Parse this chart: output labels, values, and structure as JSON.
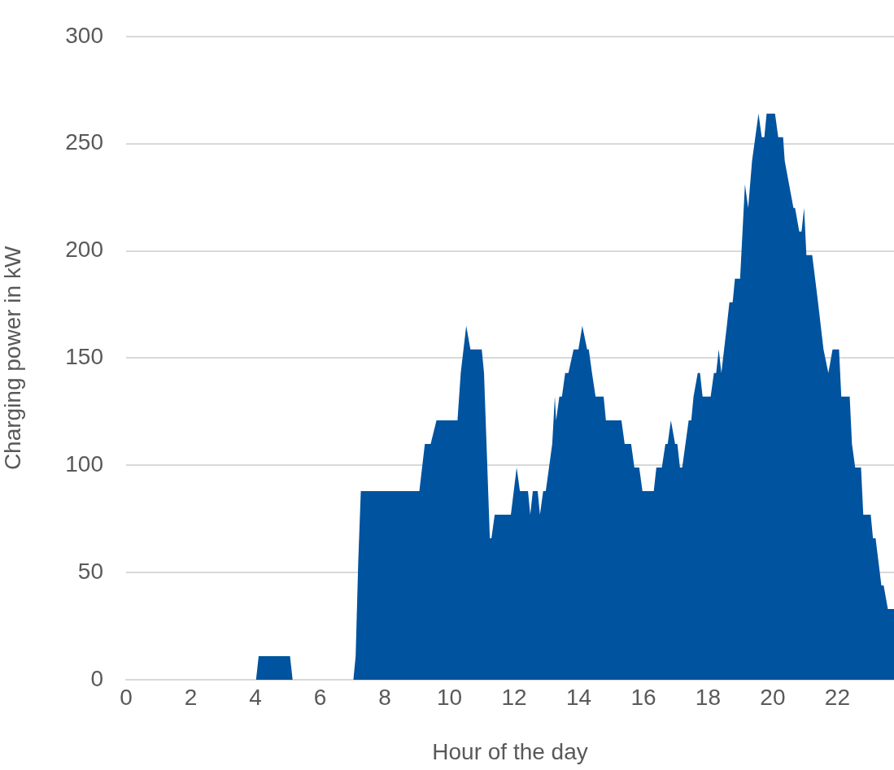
{
  "chart_data": {
    "type": "area",
    "xlabel": "Hour of the day",
    "ylabel": "Charging power in kW",
    "xlim": [
      0,
      23.75
    ],
    "xticks": [
      0,
      2,
      4,
      6,
      8,
      10,
      12,
      14,
      16,
      18,
      20,
      22
    ],
    "ylim": [
      0,
      300
    ],
    "yticks": [
      0,
      50,
      100,
      150,
      200,
      250,
      300
    ],
    "grid": "y",
    "series": [
      {
        "color": "#00539f",
        "x": [
          0,
          4.02,
          4.1,
          5.07,
          5.15,
          7.03,
          7.1,
          7.18,
          7.26,
          9.07,
          9.24,
          9.42,
          9.6,
          10.25,
          10.35,
          10.52,
          10.65,
          11.0,
          11.07,
          11.25,
          11.3,
          11.4,
          11.9,
          12.08,
          12.18,
          12.43,
          12.5,
          12.58,
          12.73,
          12.8,
          12.9,
          12.98,
          13.08,
          13.18,
          13.26,
          13.3,
          13.4,
          13.48,
          13.58,
          13.68,
          13.84,
          13.99,
          14.11,
          14.26,
          14.31,
          14.41,
          14.52,
          14.77,
          14.84,
          15.32,
          15.42,
          15.62,
          15.72,
          15.87,
          15.97,
          16.32,
          16.4,
          16.57,
          16.68,
          16.75,
          16.85,
          16.98,
          17.05,
          17.13,
          17.2,
          17.4,
          17.48,
          17.55,
          17.68,
          17.75,
          17.83,
          18.08,
          18.18,
          18.25,
          18.33,
          18.41,
          18.58,
          18.66,
          18.76,
          18.83,
          18.99,
          19.14,
          19.24,
          19.36,
          19.56,
          19.66,
          19.74,
          19.81,
          20.07,
          20.17,
          20.32,
          20.37,
          20.64,
          20.69,
          20.82,
          20.89,
          20.97,
          21.04,
          21.22,
          21.4,
          21.57,
          21.72,
          21.85,
          22.05,
          22.12,
          22.38,
          22.45,
          22.55,
          22.73,
          22.8,
          23.03,
          23.1,
          23.18,
          23.36,
          23.43,
          23.56,
          23.75
        ],
        "values": [
          0,
          0,
          11,
          11,
          0,
          0,
          11,
          55,
          88,
          88,
          110,
          110,
          121,
          121,
          143,
          165,
          154,
          154,
          143,
          66,
          66,
          77,
          77,
          99,
          88,
          88,
          77,
          88,
          88,
          77,
          88,
          88,
          99,
          110,
          132,
          121,
          132,
          132,
          143,
          143,
          154,
          154,
          165,
          154,
          154,
          143,
          132,
          132,
          121,
          121,
          110,
          110,
          99,
          99,
          88,
          88,
          99,
          99,
          110,
          110,
          121,
          110,
          110,
          99,
          99,
          121,
          121,
          132,
          143,
          143,
          132,
          132,
          143,
          143,
          154,
          143,
          165,
          176,
          176,
          187,
          187,
          231,
          220,
          242,
          264,
          253,
          253,
          264,
          264,
          253,
          253,
          242,
          220,
          220,
          209,
          209,
          220,
          198,
          198,
          176,
          154,
          143,
          154,
          154,
          132,
          132,
          110,
          99,
          99,
          77,
          77,
          66,
          66,
          44,
          44,
          33,
          33
        ]
      }
    ]
  }
}
